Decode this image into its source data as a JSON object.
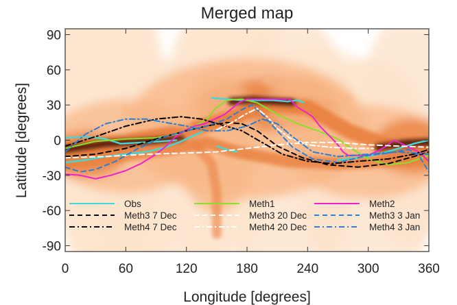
{
  "chart_data": {
    "type": "line",
    "title": "Merged map",
    "xlabel": "Longitude [degrees]",
    "ylabel": "Latitude [degrees]",
    "xlim": [
      0,
      360
    ],
    "ylim": [
      -95,
      95
    ],
    "xticks": [
      0,
      60,
      120,
      180,
      240,
      300,
      360
    ],
    "yticks": [
      90,
      60,
      30,
      0,
      -30,
      -60,
      -90
    ],
    "grid": false,
    "legend_placement": "bottom-inside",
    "background": "heatmap of merged map intensity, white to dark red-brown",
    "heatmap_colors": [
      "#ffffff",
      "#fde4cc",
      "#f8b888",
      "#e9803f",
      "#b9431a",
      "#4a1006"
    ],
    "series": [
      {
        "name": "Obs",
        "color": "#40d8d8",
        "dash": "solid",
        "segments": [
          [
            [
              0,
              -19
            ],
            [
              20,
              -17
            ],
            [
              40,
              -14
            ],
            [
              60,
              -12
            ],
            [
              80,
              -10
            ],
            [
              100,
              -6
            ],
            [
              115,
              -1
            ],
            [
              125,
              3
            ],
            [
              135,
              7
            ]
          ],
          [
            [
              55,
              -3
            ],
            [
              75,
              -2
            ],
            [
              95,
              -1
            ],
            [
              110,
              0
            ]
          ],
          [
            [
              0,
              2
            ],
            [
              20,
              3
            ],
            [
              40,
              1
            ],
            [
              55,
              -3
            ]
          ],
          [
            [
              145,
              36
            ],
            [
              160,
              35
            ],
            [
              175,
              34
            ],
            [
              190,
              34
            ],
            [
              205,
              34
            ],
            [
              220,
              33
            ],
            [
              230,
              34
            ],
            [
              236,
              32
            ]
          ],
          [
            [
              150,
              -5
            ],
            [
              160,
              -8
            ],
            [
              170,
              -10
            ]
          ],
          [
            [
              270,
              -17
            ],
            [
              290,
              -15
            ],
            [
              310,
              -12
            ],
            [
              330,
              -7
            ],
            [
              345,
              -3
            ],
            [
              360,
              0
            ]
          ]
        ]
      },
      {
        "name": "Meth1",
        "color": "#88e02a",
        "dash": "solid",
        "segments": [
          [
            [
              0,
              -7
            ],
            [
              30,
              -1
            ],
            [
              60,
              1
            ],
            [
              90,
              2
            ],
            [
              110,
              5
            ],
            [
              125,
              10
            ],
            [
              140,
              18
            ],
            [
              150,
              28
            ],
            [
              160,
              34
            ],
            [
              175,
              35
            ],
            [
              190,
              32
            ],
            [
              210,
              22
            ],
            [
              230,
              14
            ],
            [
              250,
              8
            ],
            [
              270,
              1
            ],
            [
              285,
              -8
            ],
            [
              300,
              -16
            ],
            [
              320,
              -21
            ],
            [
              340,
              -19
            ],
            [
              360,
              -13
            ]
          ]
        ]
      },
      {
        "name": "Meth2",
        "color": "#ee22cc",
        "dash": "solid",
        "segments": [
          [
            [
              0,
              -29
            ],
            [
              15,
              -30
            ],
            [
              30,
              -33
            ],
            [
              45,
              -30
            ],
            [
              60,
              -26
            ],
            [
              75,
              -20
            ],
            [
              90,
              -12
            ],
            [
              100,
              -5
            ],
            [
              108,
              2
            ],
            [
              118,
              8
            ],
            [
              128,
              12
            ],
            [
              138,
              14
            ],
            [
              148,
              18
            ],
            [
              158,
              22
            ],
            [
              165,
              27
            ],
            [
              172,
              32
            ],
            [
              180,
              35
            ],
            [
              195,
              35
            ],
            [
              210,
              35
            ],
            [
              222,
              35
            ],
            [
              230,
              28
            ],
            [
              238,
              24
            ],
            [
              245,
              20
            ],
            [
              252,
              12
            ],
            [
              260,
              5
            ],
            [
              268,
              -2
            ],
            [
              275,
              -10
            ],
            [
              280,
              -13
            ],
            [
              290,
              -13
            ],
            [
              300,
              -13
            ],
            [
              310,
              -9
            ],
            [
              318,
              -5
            ],
            [
              325,
              0
            ],
            [
              333,
              -3
            ],
            [
              340,
              -6
            ],
            [
              350,
              -10
            ],
            [
              360,
              -18
            ]
          ]
        ]
      },
      {
        "name": "Meth3 7 Dec",
        "color": "#000000",
        "dash": "dash",
        "segments": [
          [
            [
              0,
              -14
            ],
            [
              30,
              -12
            ],
            [
              60,
              -7
            ],
            [
              90,
              1
            ],
            [
              120,
              8
            ],
            [
              145,
              13
            ],
            [
              160,
              15
            ],
            [
              175,
              14
            ],
            [
              190,
              8
            ],
            [
              210,
              -5
            ],
            [
              235,
              -15
            ],
            [
              260,
              -21
            ],
            [
              290,
              -23
            ],
            [
              320,
              -20
            ],
            [
              345,
              -14
            ],
            [
              360,
              -10
            ]
          ]
        ]
      },
      {
        "name": "Meth3 20 Dec",
        "color": "#ffffff",
        "dash": "dash",
        "segments": [
          [
            [
              0,
              -15
            ],
            [
              40,
              -14
            ],
            [
              80,
              -12
            ],
            [
              120,
              -11
            ],
            [
              150,
              -10
            ],
            [
              180,
              -7
            ],
            [
              210,
              -4
            ],
            [
              240,
              -2
            ],
            [
              270,
              -2
            ],
            [
              300,
              -4
            ],
            [
              330,
              -5
            ],
            [
              360,
              -6
            ]
          ]
        ]
      },
      {
        "name": "Meth3 3 Jan",
        "color": "#2a7fd4",
        "dash": "dash",
        "segments": [
          [
            [
              0,
              -23
            ],
            [
              15,
              -27
            ],
            [
              30,
              -25
            ],
            [
              50,
              -18
            ],
            [
              70,
              -8
            ],
            [
              95,
              2
            ],
            [
              120,
              8
            ],
            [
              140,
              12
            ],
            [
              160,
              18
            ],
            [
              175,
              26
            ],
            [
              185,
              30
            ],
            [
              195,
              22
            ],
            [
              210,
              8
            ],
            [
              225,
              -6
            ],
            [
              245,
              -16
            ],
            [
              270,
              -19
            ],
            [
              300,
              -13
            ],
            [
              320,
              -11
            ],
            [
              340,
              -8
            ],
            [
              350,
              -13
            ],
            [
              360,
              -27
            ]
          ]
        ]
      },
      {
        "name": "Meth4 7 Dec",
        "color": "#000000",
        "dash": "dashdot",
        "segments": [
          [
            [
              0,
              -5
            ],
            [
              30,
              3
            ],
            [
              60,
              12
            ],
            [
              90,
              18
            ],
            [
              115,
              20
            ],
            [
              135,
              18
            ],
            [
              155,
              13
            ],
            [
              175,
              8
            ],
            [
              195,
              -2
            ],
            [
              215,
              -12
            ],
            [
              240,
              -18
            ],
            [
              265,
              -20
            ],
            [
              290,
              -18
            ],
            [
              320,
              -16
            ],
            [
              345,
              -12
            ],
            [
              360,
              -8
            ]
          ]
        ]
      },
      {
        "name": "Meth4 20 Dec",
        "color": "#ffffff",
        "dash": "dashdot",
        "segments": [
          [
            [
              150,
              9
            ],
            [
              165,
              15
            ],
            [
              178,
              22
            ],
            [
              190,
              27
            ],
            [
              200,
              20
            ],
            [
              210,
              10
            ],
            [
              222,
              2
            ],
            [
              240,
              -4
            ],
            [
              262,
              -6
            ],
            [
              285,
              -7
            ],
            [
              305,
              -7
            ]
          ]
        ]
      },
      {
        "name": "Meth4 3 Jan",
        "color": "#2a7fd4",
        "dash": "dashdot",
        "segments": [
          [
            [
              0,
              -10
            ],
            [
              20,
              5
            ],
            [
              40,
              14
            ],
            [
              60,
              18
            ],
            [
              80,
              18
            ],
            [
              100,
              15
            ],
            [
              120,
              12
            ],
            [
              140,
              8
            ],
            [
              160,
              8
            ],
            [
              180,
              12
            ],
            [
              195,
              18
            ],
            [
              210,
              14
            ],
            [
              225,
              3
            ],
            [
              245,
              -10
            ],
            [
              270,
              -14
            ],
            [
              300,
              -12
            ],
            [
              330,
              -10
            ],
            [
              360,
              -12
            ]
          ]
        ]
      }
    ],
    "legend_order": [
      "Obs",
      "Meth1",
      "Meth2",
      "Meth3 7 Dec",
      "Meth3 20 Dec",
      "Meth3 3 Jan",
      "Meth4 7 Dec",
      "Meth4 20 Dec",
      "Meth4 3 Jan"
    ]
  }
}
